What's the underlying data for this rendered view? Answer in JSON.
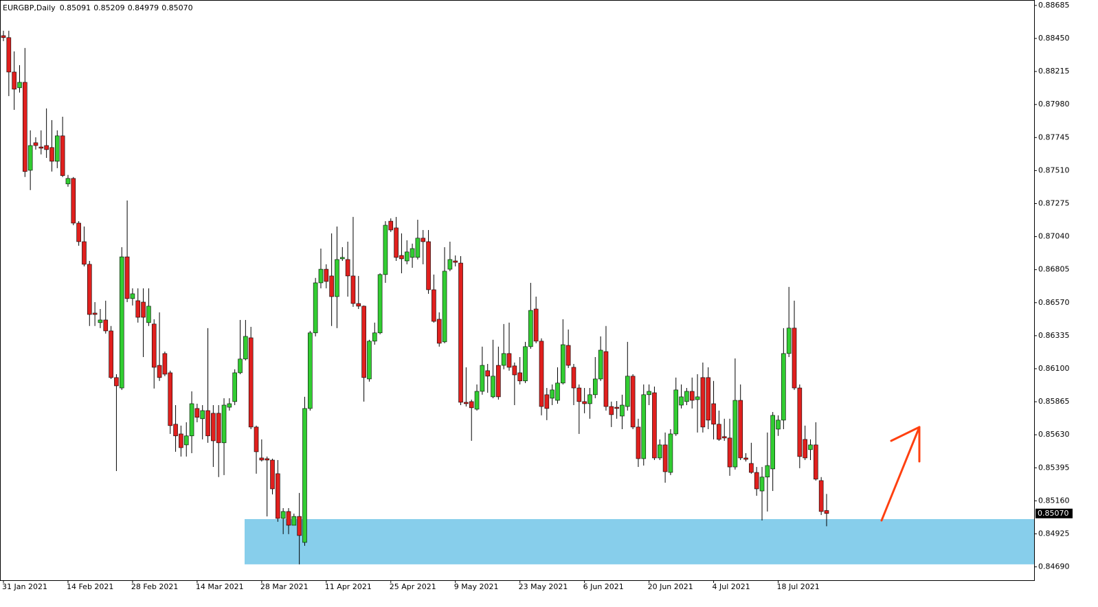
{
  "chart_data": {
    "type": "candlestick",
    "title": "EURGBP,Daily",
    "last_labels": [
      "0.85091",
      "0.85209",
      "0.84979",
      "0.85070"
    ],
    "categories": [
      "31 Jan 2021",
      null,
      null,
      null,
      null,
      null,
      null,
      null,
      null,
      null,
      null,
      null,
      "14 Feb 2021",
      null,
      null,
      null,
      null,
      null,
      null,
      null,
      null,
      null,
      null,
      null,
      "28 Feb 2021",
      null,
      null,
      null,
      null,
      null,
      null,
      null,
      null,
      null,
      null,
      null,
      "14 Mar 2021",
      null,
      null,
      null,
      null,
      null,
      null,
      null,
      null,
      null,
      null,
      null,
      "28 Mar 2021",
      null,
      null,
      null,
      null,
      null,
      null,
      null,
      null,
      null,
      null,
      null,
      "11 Apr 2021",
      null,
      null,
      null,
      null,
      null,
      null,
      null,
      null,
      null,
      null,
      null,
      "25 Apr 2021",
      null,
      null,
      null,
      null,
      null,
      null,
      null,
      null,
      null,
      null,
      null,
      "9 May 2021",
      null,
      null,
      null,
      null,
      null,
      null,
      null,
      null,
      null,
      null,
      null,
      "23 May 2021",
      null,
      null,
      null,
      null,
      null,
      null,
      null,
      null,
      null,
      null,
      null,
      "6 Jun 2021",
      null,
      null,
      null,
      null,
      null,
      null,
      null,
      null,
      null,
      null,
      null,
      "20 Jun 2021",
      null,
      null,
      null,
      null,
      null,
      null,
      null,
      null,
      null,
      null,
      null,
      "4 Jul 2021",
      null,
      null,
      null,
      null,
      null,
      null,
      null,
      null,
      null,
      null,
      null,
      "18 Jul 2021",
      null,
      null,
      null,
      null,
      null,
      null,
      null,
      null,
      null
    ],
    "open": [
      0.8847,
      0.88456,
      0.88211,
      0.88099,
      0.88138,
      0.87512,
      0.87708,
      0.87678,
      0.87688,
      0.87674,
      0.87576,
      0.87757,
      0.87415,
      0.87454,
      0.87136,
      0.87004,
      0.86843,
      0.86496,
      0.86428,
      0.86447,
      0.86369,
      0.86037,
      0.85963,
      0.86896,
      0.86599,
      0.86584,
      0.86574,
      0.86428,
      0.86418,
      0.86124,
      0.86208,
      0.86071,
      0.85705,
      0.85636,
      0.85558,
      0.85622,
      0.85817,
      0.85744,
      0.85802,
      0.85783,
      0.85783,
      0.85573,
      0.85826,
      0.85866,
      0.86071,
      0.86169,
      0.8632,
      0.85685,
      0.85465,
      0.8546,
      0.8545,
      0.85353,
      0.85035,
      0.85084,
      0.84986,
      0.85049,
      0.84864,
      0.85817,
      0.86355,
      0.86711,
      0.86808,
      0.8676,
      0.86613,
      0.86882,
      0.86877,
      0.8676,
      0.86564,
      0.86545,
      0.86027,
      0.86296,
      0.86355,
      0.8677,
      0.8715,
      0.87102,
      0.86906,
      0.86867,
      0.86892,
      0.86892,
      0.87029,
      0.87004,
      0.86662,
      0.86452,
      0.86291,
      0.86808,
      0.86867,
      0.86852,
      0.85861,
      0.85866,
      0.85812,
      0.85939,
      0.86086,
      0.859,
      0.86124,
      0.86124,
      0.86208,
      0.8612,
      0.86071,
      0.86013,
      0.86257,
      0.86525,
      0.86296,
      0.85915,
      0.8589,
      0.85875,
      0.85998,
      0.86266,
      0.8611,
      0.85963,
      0.85866,
      0.85851,
      0.85915,
      0.86027,
      0.86222,
      0.85831,
      0.85826,
      0.85763,
      0.85831,
      0.86047,
      0.85685,
      0.8546,
      0.85915,
      0.85929,
      0.85465,
      0.85558,
      0.85362,
      0.85636,
      0.85841,
      0.85866,
      0.85939,
      0.8588,
      0.86037,
      0.86037,
      0.85851,
      0.85705,
      0.85617,
      0.85607,
      0.85401,
      0.85875,
      0.85465,
      0.85426,
      0.85362,
      0.8523,
      0.85329,
      0.85387,
      0.8567,
      0.85734,
      0.86208,
      0.86389,
      0.85963,
      0.85597,
      0.85524,
      0.85558,
      0.85304,
      0.85091
    ],
    "high": [
      0.88505,
      0.88505,
      0.88358,
      0.8826,
      0.88382,
      0.87796,
      0.87747,
      0.87796,
      0.87952,
      0.87869,
      0.87796,
      0.87893,
      0.87479,
      0.87464,
      0.8715,
      0.87112,
      0.86867,
      0.86574,
      0.86525,
      0.86584,
      0.86404,
      0.86061,
      0.86965,
      0.87297,
      0.86672,
      0.86672,
      0.86672,
      0.86672,
      0.86452,
      0.86501,
      0.86222,
      0.86086,
      0.85841,
      0.85695,
      0.85719,
      0.85939,
      0.85851,
      0.85841,
      0.86389,
      0.85841,
      0.85841,
      0.8589,
      0.8589,
      0.86096,
      0.86447,
      0.86447,
      0.86398,
      0.85695,
      0.85597,
      0.85475,
      0.8546,
      0.8545,
      0.85108,
      0.85108,
      0.85069,
      0.85216,
      0.859,
      0.86369,
      0.86746,
      0.86955,
      0.86843,
      0.87063,
      0.87112,
      0.86965,
      0.87004,
      0.8718,
      0.8676,
      0.8655,
      0.86306,
      0.86428,
      0.86779,
      0.8715,
      0.8717,
      0.8718,
      0.87063,
      0.87014,
      0.8699,
      0.8716,
      0.87087,
      0.87087,
      0.8677,
      0.86501,
      0.86965,
      0.87004,
      0.86906,
      0.86901,
      0.8611,
      0.8588,
      0.85988,
      0.86257,
      0.86134,
      0.86306,
      0.86257,
      0.86418,
      0.86428,
      0.86144,
      0.86183,
      0.86291,
      0.86711,
      0.86613,
      0.86316,
      0.85963,
      0.85988,
      0.8611,
      0.86452,
      0.86379,
      0.86134,
      0.85988,
      0.85963,
      0.85963,
      0.86183,
      0.8633,
      0.86404,
      0.85866,
      0.8587,
      0.85915,
      0.86291,
      0.86061,
      0.85744,
      0.85988,
      0.85988,
      0.85973,
      0.85597,
      0.85646,
      0.8567,
      0.86037,
      0.85988,
      0.85963,
      0.86037,
      0.86061,
      0.86144,
      0.8611,
      0.86013,
      0.85802,
      0.85744,
      0.85744,
      0.86173,
      0.85988,
      0.85499,
      0.85573,
      0.85401,
      0.85401,
      0.85646,
      0.85792,
      0.85768,
      0.86389,
      0.86682,
      0.86584,
      0.85988,
      0.85695,
      0.85597,
      0.85719,
      0.85329,
      0.85209
    ],
    "low": [
      0.88431,
      0.8804,
      0.87942,
      0.88065,
      0.87464,
      0.87371,
      0.87659,
      0.87625,
      0.876,
      0.87503,
      0.87527,
      0.87464,
      0.87395,
      0.87121,
      0.86975,
      0.86828,
      0.86404,
      0.86404,
      0.86389,
      0.8635,
      0.86027,
      0.85372,
      0.85949,
      0.86574,
      0.8655,
      0.86428,
      0.86183,
      0.86404,
      0.85959,
      0.86013,
      0.86047,
      0.85636,
      0.85509,
      0.85475,
      0.85475,
      0.85499,
      0.85719,
      0.85597,
      0.85573,
      0.85401,
      0.85329,
      0.85343,
      0.85802,
      0.85841,
      0.86061,
      0.86159,
      0.8567,
      0.85353,
      0.8544,
      0.85049,
      0.85206,
      0.85011,
      0.84923,
      0.84923,
      0.84986,
      0.84708,
      0.8484,
      0.85802,
      0.8633,
      0.86672,
      0.86672,
      0.86404,
      0.86389,
      0.86867,
      0.86613,
      0.8654,
      0.86525,
      0.85866,
      0.86008,
      0.86271,
      0.86345,
      0.86711,
      0.87073,
      0.86867,
      0.86779,
      0.86843,
      0.86818,
      0.86877,
      0.86843,
      0.86633,
      0.86428,
      0.86257,
      0.86281,
      0.86794,
      0.86828,
      0.85841,
      0.85831,
      0.85587,
      0.85802,
      0.85915,
      0.85929,
      0.8589,
      0.8588,
      0.86096,
      0.86086,
      0.85841,
      0.85988,
      0.85998,
      0.86242,
      0.86281,
      0.85768,
      0.85734,
      0.85841,
      0.85851,
      0.85988,
      0.86105,
      0.85841,
      0.85636,
      0.85783,
      0.85744,
      0.8589,
      0.86013,
      0.85802,
      0.85685,
      0.85744,
      0.8567,
      0.85802,
      0.8567,
      0.85401,
      0.85411,
      0.85841,
      0.8545,
      0.8545,
      0.85289,
      0.85343,
      0.85622,
      0.85817,
      0.85841,
      0.85817,
      0.85646,
      0.85646,
      0.8567,
      0.85597,
      0.85587,
      0.85587,
      0.85338,
      0.85382,
      0.8545,
      0.8544,
      0.85353,
      0.85196,
      0.8502,
      0.85084,
      0.8523,
      0.85622,
      0.8567,
      0.86183,
      0.85949,
      0.85392,
      0.8545,
      0.8545,
      0.85304,
      0.85059,
      0.84979
    ],
    "close": [
      0.88456,
      0.88211,
      0.88089,
      0.88138,
      0.87503,
      0.87688,
      0.87688,
      0.87669,
      0.87659,
      0.87576,
      0.87757,
      0.87474,
      0.87454,
      0.87136,
      0.87004,
      0.86843,
      0.86486,
      0.86486,
      0.86447,
      0.86369,
      0.86037,
      0.85978,
      0.86896,
      0.86599,
      0.86633,
      0.86466,
      0.86466,
      0.86545,
      0.8611,
      0.86037,
      0.86061,
      0.85695,
      0.85622,
      0.85538,
      0.85622,
      0.85851,
      0.85754,
      0.85802,
      0.85622,
      0.85587,
      0.85573,
      0.85841,
      0.85851,
      0.86071,
      0.86169,
      0.8633,
      0.85685,
      0.85509,
      0.8545,
      0.8545,
      0.85245,
      0.85035,
      0.85084,
      0.84986,
      0.85049,
      0.84913,
      0.85817,
      0.86355,
      0.86711,
      0.86808,
      0.86721,
      0.86613,
      0.86877,
      0.86892,
      0.8676,
      0.86564,
      0.86545,
      0.86037,
      0.86296,
      0.86355,
      0.8677,
      0.87121,
      0.87087,
      0.86892,
      0.86882,
      0.86931,
      0.86955,
      0.87029,
      0.87004,
      0.86662,
      0.86437,
      0.86281,
      0.86794,
      0.86877,
      0.86857,
      0.85861,
      0.85851,
      0.85822,
      0.85939,
      0.86124,
      0.86047,
      0.86047,
      0.859,
      0.86208,
      0.8611,
      0.86056,
      0.86013,
      0.86257,
      0.86515,
      0.86296,
      0.85831,
      0.85817,
      0.85949,
      0.85998,
      0.86271,
      0.86124,
      0.85963,
      0.85866,
      0.85851,
      0.85915,
      0.86027,
      0.86232,
      0.85831,
      0.85773,
      0.85817,
      0.85841,
      0.86047,
      0.85685,
      0.8546,
      0.85915,
      0.85939,
      0.85465,
      0.85558,
      0.85367,
      0.85636,
      0.85949,
      0.859,
      0.85939,
      0.85875,
      0.859,
      0.85685,
      0.85734,
      0.85705,
      0.85597,
      0.85607,
      0.85401,
      0.85875,
      0.85465,
      0.85455,
      0.85362,
      0.85245,
      0.85329,
      0.85411,
      0.85768,
      0.85734,
      0.86208,
      0.86389,
      0.85963,
      0.85475,
      0.85465,
      0.85558,
      0.85314,
      0.85084,
      0.8507
    ],
    "colors": {
      "up": "#32cd32",
      "down": "#e0201e",
      "wick": "#000000"
    },
    "zone": {
      "low": 0.84708,
      "high": 0.8503,
      "color": "#87ceeb"
    },
    "ylim": [
      0.84595,
      0.88709
    ],
    "yticks": [
      0.88685,
      {
        "value": 0.8845,
        "label": "0.88450"
      },
      0.88215,
      {
        "value": 0.8798,
        "label": "0.87980"
      },
      0.87745,
      {
        "value": 0.8751,
        "label": "0.87510"
      },
      0.87275,
      {
        "value": 0.8704,
        "label": "0.87040"
      },
      0.86805,
      {
        "value": 0.8657,
        "label": "0.86570"
      },
      0.86335,
      {
        "value": 0.861,
        "label": "0.86100"
      },
      0.85865,
      {
        "value": 0.8563,
        "label": "0.85630"
      },
      0.85395,
      {
        "value": 0.8516,
        "label": "0.85160"
      },
      0.84925,
      {
        "value": 0.8469,
        "label": "0.84690"
      }
    ],
    "grid": false
  }
}
